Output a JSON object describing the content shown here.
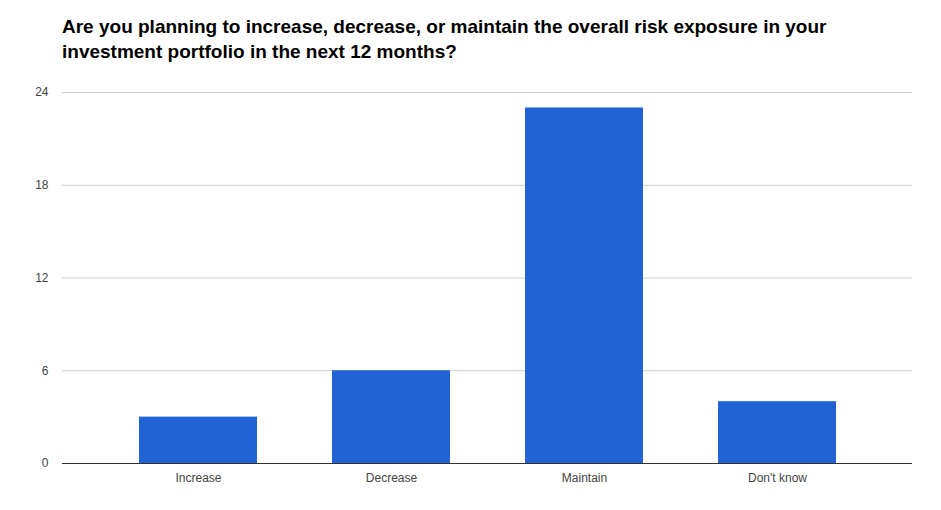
{
  "chart_data": {
    "type": "bar",
    "title": "Are you planning to increase, decrease, or maintain the overall risk exposure in your investment portfolio in the next 12 months?",
    "categories": [
      "Increase",
      "Decrease",
      "Maintain",
      "Don't know"
    ],
    "values": [
      3,
      6,
      23,
      4
    ],
    "color": "#2163d5",
    "ylim": [
      0,
      24
    ],
    "yticks": [
      0,
      6,
      12,
      18,
      24
    ],
    "grid": true
  }
}
